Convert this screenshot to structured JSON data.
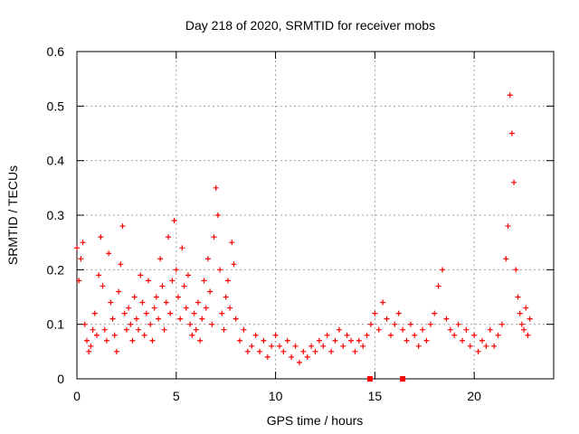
{
  "chart_data": {
    "type": "scatter",
    "title": "Day 218 of 2020, SRMTID for receiver mobs",
    "xlabel": "GPS time / hours",
    "ylabel": "SRMTID / TECUs",
    "xlim": [
      0,
      24
    ],
    "ylim": [
      0,
      0.6
    ],
    "xticks": [
      0,
      5,
      10,
      15,
      20
    ],
    "xtick_labels": [
      "0",
      "5",
      "10",
      "15",
      "20"
    ],
    "yticks": [
      0,
      0.1,
      0.2,
      0.3,
      0.4,
      0.5,
      0.6
    ],
    "ytick_labels": [
      "0",
      "0.1",
      "0.2",
      "0.3",
      "0.4",
      "0.5",
      "0.6"
    ],
    "grid": true,
    "marker": "plus",
    "color": "#ff0000",
    "data_gaps_markers": {
      "marker": "square",
      "x": [
        14.75,
        16.4
      ],
      "y": [
        0,
        0
      ]
    },
    "series": [
      {
        "name": "SRMTID",
        "x": [
          0.0,
          0.1,
          0.2,
          0.3,
          0.4,
          0.5,
          0.6,
          0.7,
          0.8,
          0.9,
          1.0,
          1.1,
          1.2,
          1.3,
          1.4,
          1.5,
          1.6,
          1.7,
          1.8,
          1.9,
          2.0,
          2.1,
          2.2,
          2.3,
          2.4,
          2.5,
          2.6,
          2.7,
          2.8,
          2.9,
          3.0,
          3.1,
          3.2,
          3.3,
          3.4,
          3.5,
          3.6,
          3.7,
          3.8,
          3.9,
          4.0,
          4.1,
          4.2,
          4.3,
          4.4,
          4.5,
          4.6,
          4.7,
          4.8,
          4.9,
          5.0,
          5.1,
          5.2,
          5.3,
          5.4,
          5.5,
          5.6,
          5.7,
          5.8,
          5.9,
          6.0,
          6.1,
          6.2,
          6.3,
          6.4,
          6.5,
          6.6,
          6.7,
          6.8,
          6.9,
          7.0,
          7.1,
          7.2,
          7.3,
          7.4,
          7.5,
          7.6,
          7.7,
          7.8,
          7.9,
          8.0,
          8.2,
          8.4,
          8.6,
          8.8,
          9.0,
          9.2,
          9.4,
          9.6,
          9.8,
          10.0,
          10.2,
          10.4,
          10.6,
          10.8,
          11.0,
          11.2,
          11.4,
          11.6,
          11.8,
          12.0,
          12.2,
          12.4,
          12.6,
          12.8,
          13.0,
          13.2,
          13.4,
          13.6,
          13.8,
          14.0,
          14.2,
          14.4,
          14.6,
          14.8,
          15.0,
          15.2,
          15.4,
          15.6,
          15.8,
          16.0,
          16.2,
          16.4,
          16.6,
          16.8,
          17.0,
          17.2,
          17.4,
          17.6,
          17.8,
          18.0,
          18.2,
          18.4,
          18.6,
          18.8,
          19.0,
          19.2,
          19.4,
          19.6,
          19.8,
          20.0,
          20.2,
          20.4,
          20.6,
          20.8,
          21.0,
          21.2,
          21.4,
          21.6,
          21.7,
          21.8,
          21.9,
          22.0,
          22.1,
          22.2,
          22.3,
          22.4,
          22.5,
          22.6,
          22.7,
          22.8
        ],
        "y": [
          0.24,
          0.18,
          0.22,
          0.25,
          0.1,
          0.07,
          0.05,
          0.06,
          0.09,
          0.12,
          0.08,
          0.19,
          0.26,
          0.17,
          0.09,
          0.07,
          0.23,
          0.14,
          0.11,
          0.08,
          0.05,
          0.16,
          0.21,
          0.28,
          0.12,
          0.09,
          0.13,
          0.1,
          0.07,
          0.15,
          0.11,
          0.09,
          0.19,
          0.14,
          0.08,
          0.12,
          0.18,
          0.1,
          0.07,
          0.13,
          0.15,
          0.11,
          0.22,
          0.17,
          0.09,
          0.14,
          0.26,
          0.12,
          0.18,
          0.29,
          0.2,
          0.15,
          0.11,
          0.24,
          0.17,
          0.13,
          0.19,
          0.1,
          0.08,
          0.12,
          0.09,
          0.14,
          0.07,
          0.11,
          0.18,
          0.13,
          0.22,
          0.16,
          0.1,
          0.26,
          0.35,
          0.3,
          0.2,
          0.12,
          0.09,
          0.15,
          0.18,
          0.13,
          0.25,
          0.21,
          0.11,
          0.07,
          0.09,
          0.05,
          0.06,
          0.08,
          0.05,
          0.07,
          0.04,
          0.06,
          0.08,
          0.06,
          0.05,
          0.07,
          0.04,
          0.06,
          0.03,
          0.05,
          0.04,
          0.06,
          0.05,
          0.07,
          0.06,
          0.08,
          0.05,
          0.07,
          0.09,
          0.06,
          0.08,
          0.07,
          0.05,
          0.07,
          0.06,
          0.08,
          0.1,
          0.12,
          0.09,
          0.14,
          0.11,
          0.08,
          0.1,
          0.12,
          0.09,
          0.07,
          0.1,
          0.08,
          0.06,
          0.09,
          0.07,
          0.1,
          0.12,
          0.17,
          0.2,
          0.11,
          0.09,
          0.08,
          0.1,
          0.07,
          0.09,
          0.06,
          0.08,
          0.05,
          0.07,
          0.06,
          0.09,
          0.06,
          0.08,
          0.1,
          0.22,
          0.28,
          0.52,
          0.45,
          0.36,
          0.2,
          0.15,
          0.12,
          0.1,
          0.09,
          0.13,
          0.08,
          0.11
        ]
      }
    ]
  }
}
